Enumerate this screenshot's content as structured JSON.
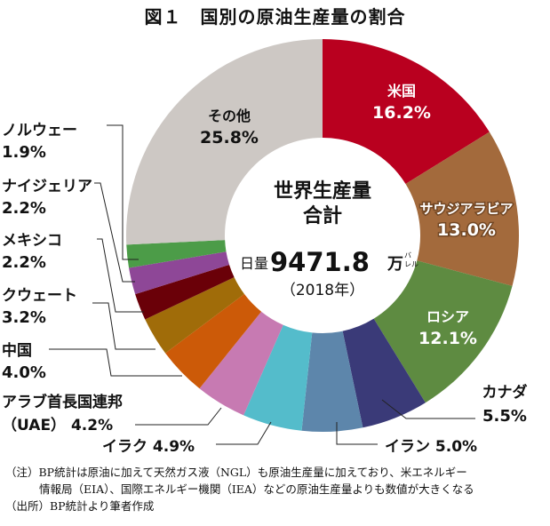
{
  "chart_data": {
    "type": "pie",
    "title": "図１　国別の原油生産量の割合",
    "donut": true,
    "start": "top (12 o'clock), clockwise",
    "center_label": {
      "line1": "世界生産量",
      "line2": "合計",
      "prefix": "日量",
      "value": "9471.8",
      "unit_main": "万",
      "unit_small_top": "バ",
      "unit_small_bottom": "レル",
      "year": "（2018年）"
    },
    "slices": [
      {
        "name": "米国",
        "value": 16.2,
        "label": "16.2%",
        "color": "#b9001f",
        "label_style": "inside-white"
      },
      {
        "name": "サウジアラビア",
        "value": 13.0,
        "label": "13.0%",
        "color": "#a36a3c",
        "label_style": "inside-white-shadow"
      },
      {
        "name": "ロシア",
        "value": 12.1,
        "label": "12.1%",
        "color": "#5e8b41",
        "label_style": "inside-white"
      },
      {
        "name": "カナダ",
        "value": 5.5,
        "label": "5.5%",
        "color": "#3a3a78",
        "label_style": "outside"
      },
      {
        "name": "イラン",
        "value": 5.0,
        "label": "5.0%",
        "color": "#5d86ab",
        "label_style": "outside"
      },
      {
        "name": "イラク",
        "value": 4.9,
        "label": "4.9%",
        "color": "#54bccb",
        "label_style": "outside"
      },
      {
        "name": "アラブ首長国連邦",
        "name_line2": "（UAE）",
        "value": 4.2,
        "label": "4.2%",
        "color": "#c77ab2",
        "label_style": "outside"
      },
      {
        "name": "中国",
        "value": 4.0,
        "label": "4.0%",
        "color": "#cc5a08",
        "label_style": "outside"
      },
      {
        "name": "クウェート",
        "value": 3.2,
        "label": "3.2%",
        "color": "#a06c09",
        "label_style": "outside"
      },
      {
        "name": "メキシコ",
        "value": 2.2,
        "label": "2.2%",
        "color": "#6a0008",
        "label_style": "outside"
      },
      {
        "name": "ナイジェリア",
        "value": 2.2,
        "label": "2.2%",
        "color": "#8e4797",
        "label_style": "outside"
      },
      {
        "name": "ノルウェー",
        "value": 1.9,
        "label": "1.9%",
        "color": "#4c9c48",
        "label_style": "outside"
      },
      {
        "name": "その他",
        "value": 25.8,
        "label": "25.8%",
        "color": "#cdc8c4",
        "label_style": "inside-dark"
      }
    ]
  },
  "notes": [
    "（注）BP統計は原油に加えて天然ガス液（NGL）も原油生産量に加えており、米エネルギー",
    "情報局（EIA）、国際エネルギー機関（IEA）などの原油生産量よりも数値が大きくなる",
    "（出所）BP統計より筆者作成"
  ]
}
